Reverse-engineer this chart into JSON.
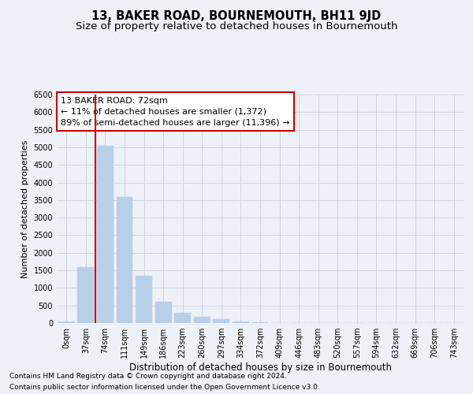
{
  "title": "13, BAKER ROAD, BOURNEMOUTH, BH11 9JD",
  "subtitle": "Size of property relative to detached houses in Bournemouth",
  "xlabel": "Distribution of detached houses by size in Bournemouth",
  "ylabel": "Number of detached properties",
  "footnote1": "Contains HM Land Registry data © Crown copyright and database right 2024.",
  "footnote2": "Contains public sector information licensed under the Open Government Licence v3.0.",
  "annotation_title": "13 BAKER ROAD: 72sqm",
  "annotation_line2": "← 11% of detached houses are smaller (1,372)",
  "annotation_line3": "89% of semi-detached houses are larger (11,396) →",
  "bar_labels": [
    "0sqm",
    "37sqm",
    "74sqm",
    "111sqm",
    "149sqm",
    "186sqm",
    "223sqm",
    "260sqm",
    "297sqm",
    "334sqm",
    "372sqm",
    "409sqm",
    "446sqm",
    "483sqm",
    "520sqm",
    "557sqm",
    "594sqm",
    "632sqm",
    "669sqm",
    "706sqm",
    "743sqm"
  ],
  "bar_values": [
    50,
    1600,
    5050,
    3580,
    1350,
    600,
    290,
    170,
    110,
    55,
    30,
    5,
    0,
    0,
    0,
    0,
    0,
    0,
    0,
    0,
    0
  ],
  "bar_color": "#b8cfe8",
  "bar_edge_color": "#b8cfe8",
  "vline_color": "#cc0000",
  "vline_x": 1.5,
  "grid_color": "#c8d0dc",
  "background_color": "#eef1f8",
  "axes_background": "#eef1f8",
  "ylim": [
    0,
    6500
  ],
  "yticks": [
    0,
    500,
    1000,
    1500,
    2000,
    2500,
    3000,
    3500,
    4000,
    4500,
    5000,
    5500,
    6000,
    6500
  ],
  "annotation_box_color": "#cc0000",
  "title_fontsize": 10.5,
  "subtitle_fontsize": 9.5,
  "xlabel_fontsize": 8.5,
  "ylabel_fontsize": 8,
  "tick_fontsize": 7,
  "annotation_fontsize": 8,
  "footnote_fontsize": 6.5
}
